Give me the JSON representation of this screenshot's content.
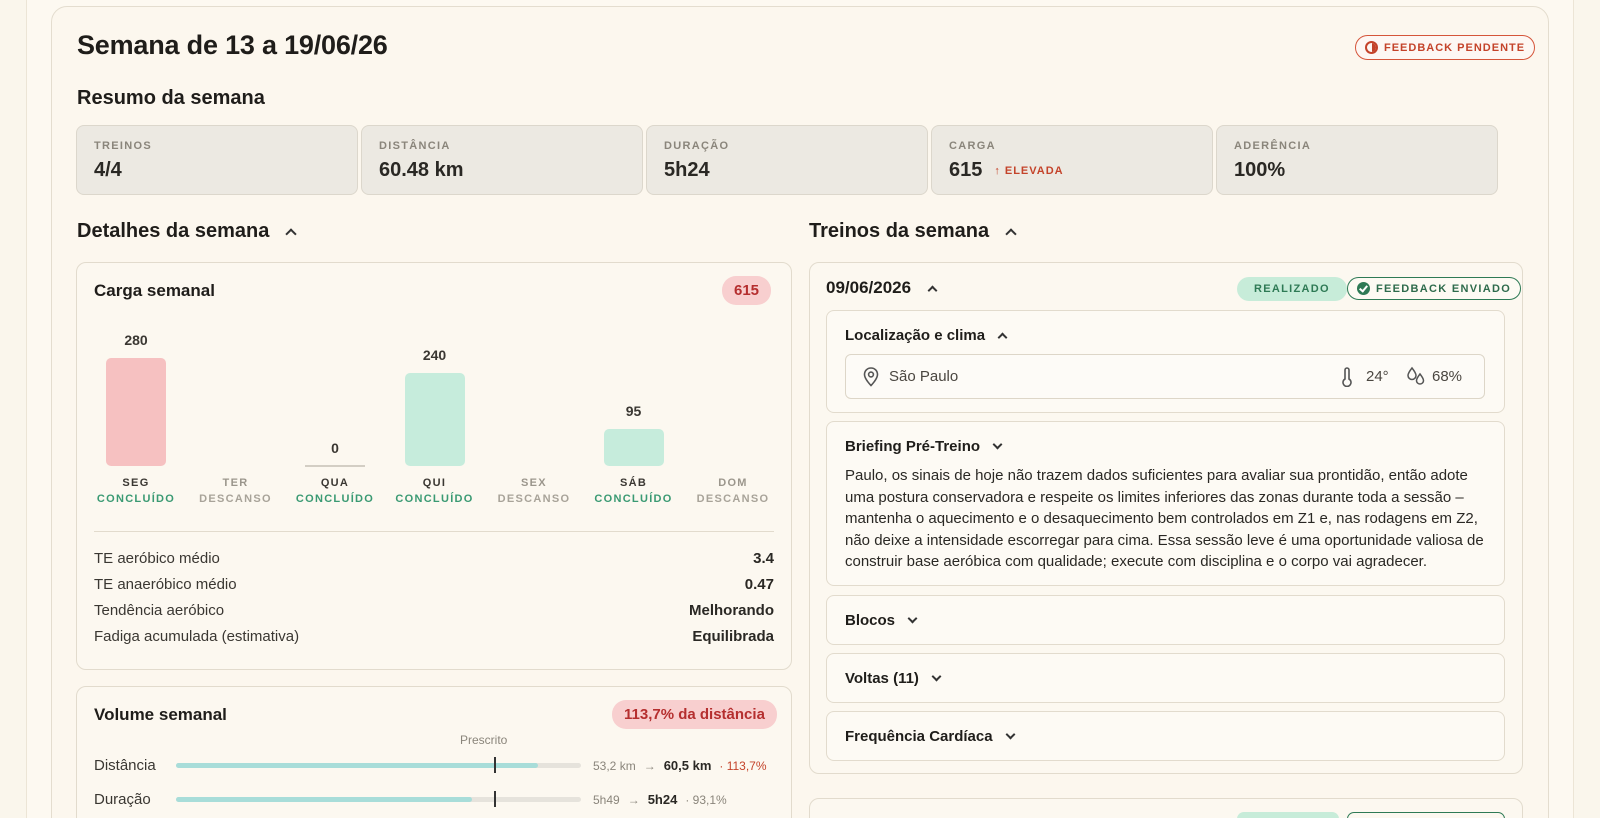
{
  "header": {
    "title": "Semana de 13 a 19/06/26",
    "feedback_badge": "FEEDBACK PENDENTE"
  },
  "summary": {
    "title": "Resumo da semana",
    "stats": [
      {
        "label": "TREINOS",
        "value": "4/4"
      },
      {
        "label": "DISTÂNCIA",
        "value": "60.48 km"
      },
      {
        "label": "DURAÇÃO",
        "value": "5h24"
      },
      {
        "label": "CARGA",
        "value": "615",
        "badge": "ELEVADA"
      },
      {
        "label": "ADERÊNCIA",
        "value": "100%"
      }
    ]
  },
  "details": {
    "title": "Detalhes da semana",
    "load_card": {
      "title": "Carga semanal",
      "total": "615",
      "days": [
        {
          "day": "SEG",
          "status": "CONCLUÍDO",
          "value": 280,
          "label": "280",
          "color": "#f6c1c1"
        },
        {
          "day": "TER",
          "status": "DESCANSO",
          "value": null,
          "label": ""
        },
        {
          "day": "QUA",
          "status": "CONCLUÍDO",
          "value": 0,
          "label": "0",
          "color": "#c6ecdc"
        },
        {
          "day": "QUI",
          "status": "CONCLUÍDO",
          "value": 240,
          "label": "240",
          "color": "#c6ecdc"
        },
        {
          "day": "SEX",
          "status": "DESCANSO",
          "value": null,
          "label": ""
        },
        {
          "day": "SÁB",
          "status": "CONCLUÍDO",
          "value": 95,
          "label": "95",
          "color": "#c6ecdc"
        },
        {
          "day": "DOM",
          "status": "DESCANSO",
          "value": null,
          "label": ""
        }
      ],
      "metrics": [
        {
          "label": "TE aeróbico médio",
          "value": "3.4"
        },
        {
          "label": "TE anaeróbico médio",
          "value": "0.47"
        },
        {
          "label": "Tendência aeróbico",
          "value": "Melhorando"
        },
        {
          "label": "Fadiga acumulada (estimativa)",
          "value": "Equilibrada"
        }
      ]
    },
    "volume_card": {
      "title": "Volume semanal",
      "badge": "113,7% da distância",
      "prescribed_label": "Prescrito",
      "rows": [
        {
          "label": "Distância",
          "prescribed": "53,2 km",
          "actual": "60,5 km",
          "pct": "· 113,7%",
          "pct_value": 113.7
        },
        {
          "label": "Duração",
          "prescribed": "5h49",
          "actual": "5h24",
          "pct": "· 93,1%",
          "pct_value": 93.1
        }
      ]
    }
  },
  "workouts": {
    "title": "Treinos da semana",
    "session": {
      "date": "09/06/2026",
      "status_badge": "REALIZADO",
      "feedback_badge": "FEEDBACK ENVIADO",
      "location": {
        "title": "Localização e clima",
        "city": "São Paulo",
        "temperature": "24°",
        "humidity": "68%"
      },
      "briefing": {
        "title": "Briefing Pré-Treino",
        "text": "Paulo, os sinais de hoje não trazem dados suficientes para avaliar sua prontidão, então adote uma postura conservadora e respeite os limites inferiores das zonas durante toda a sessão – mantenha o aquecimento e o desaquecimento bem controlados em Z1 e, nas rodagens em Z2, não deixe a intensidade escorregar para cima. Essa sessão leve é uma oportunidade valiosa de construir base aeróbica com qualidade; execute com disciplina e o corpo vai agradecer."
      },
      "sections": [
        {
          "title": "Blocos"
        },
        {
          "title": "Voltas (11)"
        },
        {
          "title": "Frequência Cardíaca"
        }
      ]
    }
  }
}
